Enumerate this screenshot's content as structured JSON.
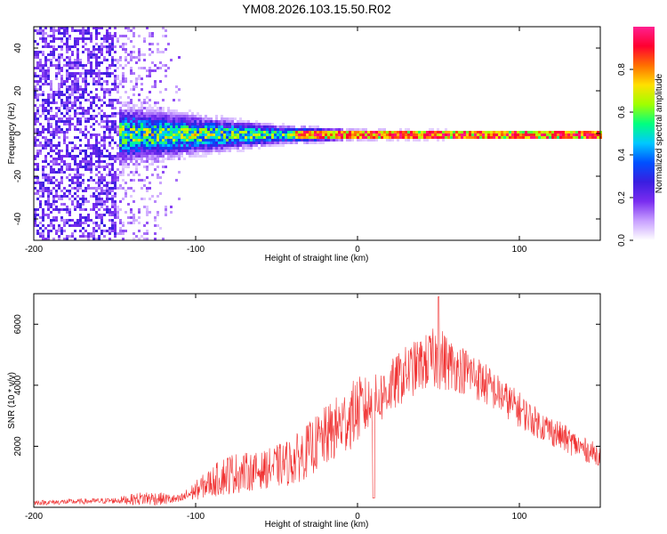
{
  "title": "YM08.2026.103.15.50.R02",
  "chart_data": [
    {
      "type": "heatmap",
      "name": "spectrogram",
      "xlabel": "Height of straight line (km)",
      "ylabel": "Frequency (Hz)",
      "xlim": [
        -200,
        150
      ],
      "ylim": [
        -50,
        50
      ],
      "xticks": [
        -200,
        -100,
        0,
        100
      ],
      "yticks": [
        -40,
        -20,
        0,
        20,
        40
      ],
      "colorbar": {
        "label": "Normalized spectral amplitude",
        "range": [
          0,
          1
        ],
        "ticks": [
          0.0,
          0.2,
          0.4,
          0.6,
          0.8
        ],
        "colors": [
          "#ffffff",
          "#c8a0ff",
          "#7a2df0",
          "#3a1ee0",
          "#0050ff",
          "#00c8ff",
          "#00ff80",
          "#a0ff00",
          "#ffe000",
          "#ff7000",
          "#ff0030",
          "#ff2090"
        ]
      },
      "description_features": {
        "noise_region_x": [
          -200,
          -110
        ],
        "signal_center_hz": 0,
        "signal_halfwidth_hz_at_x": [
          [
            -145,
            12
          ],
          [
            -100,
            8
          ],
          [
            -50,
            4
          ],
          [
            0,
            2
          ],
          [
            150,
            1.5
          ]
        ]
      }
    },
    {
      "type": "line",
      "name": "snr",
      "xlabel": "Height of straight line (km)",
      "ylabel": "SNR (10 * v/v)",
      "xlim": [
        -200,
        150
      ],
      "ylim": [
        0,
        7000
      ],
      "xticks": [
        -200,
        -100,
        0,
        100
      ],
      "yticks": [
        2000,
        4000,
        6000
      ],
      "color": "#f03030",
      "envelope": {
        "x": [
          -200,
          -150,
          -130,
          -110,
          -95,
          -80,
          -60,
          -40,
          -30,
          -20,
          -10,
          0,
          10,
          20,
          30,
          40,
          50,
          60,
          70,
          80,
          90,
          100,
          110,
          120,
          130,
          140,
          150
        ],
        "mean": [
          150,
          220,
          300,
          250,
          700,
          1100,
          1200,
          1500,
          1900,
          2300,
          2700,
          3200,
          3400,
          3900,
          4400,
          4700,
          4900,
          4600,
          4400,
          4000,
          3600,
          3200,
          2800,
          2500,
          2200,
          1900,
          1700
        ],
        "spread": [
          80,
          100,
          250,
          150,
          400,
          700,
          600,
          800,
          900,
          1000,
          1100,
          1100,
          900,
          900,
          900,
          900,
          1100,
          800,
          800,
          700,
          600,
          600,
          500,
          500,
          450,
          400,
          350
        ]
      },
      "peak": {
        "x": 50,
        "y": 6900
      }
    }
  ]
}
